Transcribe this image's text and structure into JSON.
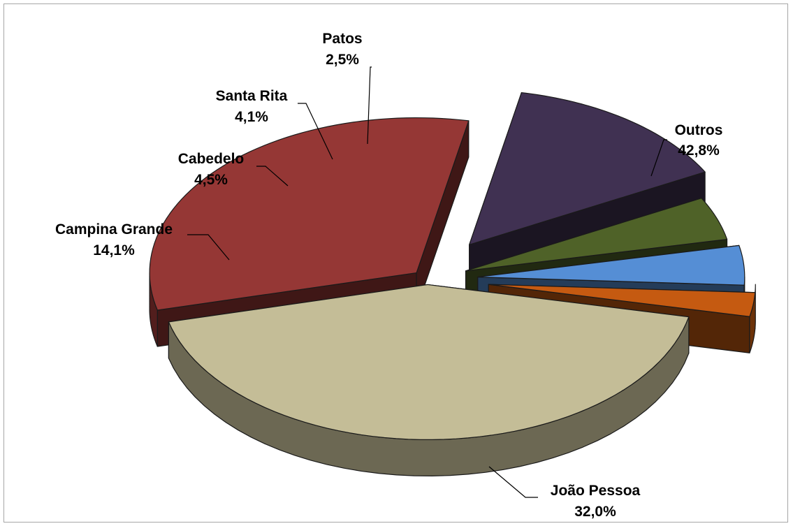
{
  "chart_data": {
    "type": "pie",
    "title": "",
    "style": "3d-exploded",
    "slices": [
      {
        "label": "Outros",
        "value": 42.8,
        "value_label": "42,8%",
        "color": "#c4bd97"
      },
      {
        "label": "João Pessoa",
        "value": 32.0,
        "value_label": "32,0%",
        "color": "#953735"
      },
      {
        "label": "Campina Grande",
        "value": 14.1,
        "value_label": "14,1%",
        "color": "#403152"
      },
      {
        "label": "Cabedelo",
        "value": 4.5,
        "value_label": "4,5%",
        "color": "#4f6228"
      },
      {
        "label": "Santa Rita",
        "value": 4.1,
        "value_label": "4,1%",
        "color": "#558ed5"
      },
      {
        "label": "Patos",
        "value": 2.5,
        "value_label": "2,5%",
        "color": "#c55a11"
      }
    ]
  }
}
